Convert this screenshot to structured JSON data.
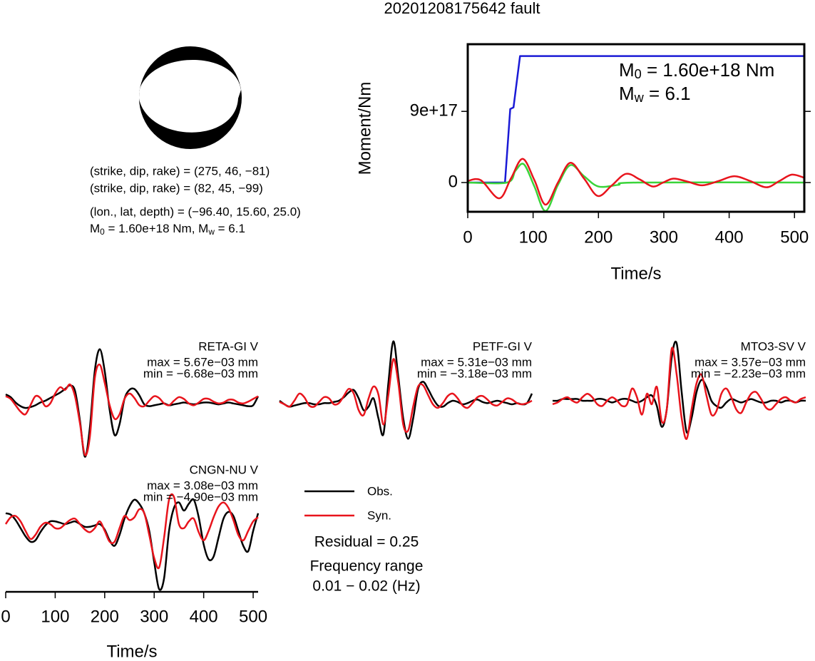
{
  "title": "20201208175642 fault",
  "mechanism": {
    "lines": [
      "(strike, dip, rake) = (275, 46, −81)",
      "(strike, dip, rake) = (82, 45, −99)",
      "(lon., lat, depth) = (−96.40, 15.60, 25.0)"
    ],
    "moment_line": [
      {
        "text": "M"
      },
      {
        "sub": "0"
      },
      {
        "text": " = 1.60e+18 Nm, M"
      },
      {
        "sub": "w"
      },
      {
        "text": " = 6.1"
      }
    ]
  },
  "legend": [
    {
      "name": "Obs.",
      "color": "#000000"
    },
    {
      "name": "Syn.",
      "color": "#e8141c"
    }
  ],
  "residual": "Residual = 0.25",
  "frequency": [
    "Frequency range",
    "0.01 − 0.02 (Hz)"
  ],
  "chart_data": [
    {
      "type": "line",
      "xlabel": "Time/s",
      "ylabel": "Moment/Nm",
      "xlim": [
        0,
        515
      ],
      "ylim": [
        -3.7e+17,
        1.75e+18
      ],
      "xticks": [
        0,
        100,
        200,
        300,
        400,
        500
      ],
      "yticks": [
        0,
        {
          "value": 9e+17,
          "label": "9e+17"
        }
      ],
      "annotations": [
        [
          {
            "text": "M"
          },
          {
            "sub": "0"
          },
          {
            "text": " = 1.60e+18 Nm"
          }
        ],
        [
          {
            "text": "M"
          },
          {
            "sub": "w"
          },
          {
            "text": " = 6.1"
          }
        ]
      ],
      "series": [
        {
          "color": "#1a1ad6",
          "smooth": false,
          "x": [
            0,
            57,
            65,
            70,
            80,
            515
          ],
          "values": [
            0,
            0,
            9.3e+17,
            9.5e+17,
            1.6e+18,
            1.6e+18
          ]
        },
        {
          "color": "#3ad43a",
          "smooth": true,
          "x": [
            0,
            60,
            73,
            86,
            102,
            119,
            138,
            157,
            178,
            200,
            230,
            260,
            515
          ],
          "values": [
            0,
            0,
            1.5e+17,
            2.3e+17,
            -5e+16,
            -3.6e+17,
            -3e+16,
            2.2e+17,
            8e+16,
            -5e+16,
            -3e+16,
            0,
            0
          ]
        },
        {
          "color": "#e8141c",
          "smooth": true,
          "x": [
            0,
            20,
            48,
            66,
            84,
            102,
            119,
            138,
            157,
            178,
            199,
            220,
            242,
            263,
            283,
            299,
            315,
            337,
            359,
            384,
            408,
            432,
            457,
            477,
            496,
            515
          ],
          "values": [
            2e+16,
            3e+16,
            -2e+17,
            5e+16,
            3e+17,
            3e+16,
            -2.8e+17,
            0,
            2.5e+17,
            5e+16,
            -1.7e+17,
            -4e+16,
            1.1e+17,
            4e+16,
            -5e+16,
            0,
            5e+16,
            1e+16,
            -3.5e+16,
            2e+16,
            8e+16,
            2e+16,
            -6e+16,
            2e+16,
            1e+17,
            6e+16
          ]
        }
      ]
    },
    {
      "type": "line",
      "title": "RETA-GI V",
      "max_label": "max = 5.67e−03 mm",
      "min_label": "min = −6.68e−03 mm",
      "xlim": [
        0,
        510
      ],
      "ylim": [
        -0.0075,
        0.0075
      ],
      "x": [
        0,
        10,
        20,
        30,
        40,
        50,
        60,
        70,
        80,
        90,
        100,
        110,
        120,
        130,
        140,
        150,
        160,
        170,
        180,
        190,
        200,
        210,
        220,
        230,
        240,
        250,
        260,
        270,
        280,
        290,
        300,
        310,
        320,
        330,
        340,
        350,
        360,
        370,
        380,
        390,
        400,
        410,
        420,
        430,
        440,
        450,
        460,
        470,
        480,
        490,
        500,
        510
      ],
      "series": [
        {
          "values": [
            0.0007,
            0.0004,
            -0.0002,
            -0.0006,
            -0.0008,
            -0.0007,
            -0.0005,
            -0.0002,
            0,
            0.0003,
            0.0006,
            0.0009,
            0.0013,
            0.0017,
            0.0011,
            -0.0022,
            -0.0062,
            -0.003,
            0.0033,
            0.0057,
            0.0033,
            -0.001,
            -0.0038,
            -0.0026,
            0.0002,
            0.0012,
            0.0013,
            0.0006,
            -0.0004,
            -0.0006,
            -0.0005,
            -0.0004,
            -0.0003,
            -0.0005,
            -0.0004,
            -0.0003,
            -0.0002,
            -0.0003,
            -0.0004,
            -0.0003,
            -0.0002,
            -0.0002,
            -0.0003,
            -0.0004,
            -0.0003,
            -0.0002,
            -0.0003,
            -0.0004,
            -0.0005,
            -0.0006,
            -0.0005,
            0.0005
          ]
        },
        {
          "values": [
            0.0005,
            0.0002,
            -0.0005,
            -0.0012,
            -0.0015,
            -0.0005,
            0.0005,
            0.0003,
            -0.0006,
            -0.0003,
            0.0008,
            0.0015,
            0.0012,
            0.0018,
            0.0005,
            -0.0025,
            -0.006,
            -0.004,
            0.0025,
            0.004,
            0.002,
            -0.0005,
            -0.002,
            -0.0015,
            0.0002,
            0.0008,
            0.0003,
            -0.0005,
            -0.0006,
            0,
            0.0005,
            0.0003,
            -0.0003,
            -0.0005,
            0,
            0.0004,
            0.0002,
            -0.0003,
            -0.0005,
            -0.0002,
            0.0002,
            0.0002,
            -0.0001,
            -0.0003,
            -0.0002,
            0.0001,
            0.0001,
            -0.0002,
            -0.0003,
            -0.0001,
            0.0002,
            0.0005
          ]
        }
      ]
    },
    {
      "type": "line",
      "title": "PETF-GI V",
      "max_label": "max = 5.31e−03 mm",
      "min_label": "min = −3.18e−03 mm",
      "xlim": [
        0,
        510
      ],
      "ylim": [
        -0.0057,
        0.0057
      ],
      "x": [
        0,
        10,
        20,
        30,
        40,
        50,
        60,
        70,
        80,
        90,
        100,
        110,
        120,
        130,
        140,
        150,
        160,
        170,
        180,
        190,
        200,
        210,
        220,
        230,
        240,
        250,
        260,
        270,
        280,
        290,
        300,
        310,
        320,
        330,
        340,
        350,
        360,
        370,
        380,
        390,
        400,
        410,
        420,
        430,
        440,
        450,
        460,
        470,
        480,
        490,
        500,
        510
      ],
      "series": [
        {
          "values": [
            0,
            -0.0003,
            -0.0005,
            -0.0004,
            -0.0003,
            -0.0002,
            -0.0002,
            -0.0003,
            -0.0003,
            -0.0002,
            -0.0002,
            -0.0001,
            0,
            0.0003,
            0.0007,
            0.0009,
            0.0002,
            -0.0008,
            -0.0005,
            0.0002,
            -0.0015,
            -0.0028,
            0.0015,
            0.005,
            0.002,
            -0.0015,
            -0.0032,
            -0.0015,
            0.001,
            0.0016,
            0.001,
            0.0002,
            -0.0004,
            -0.0005,
            -0.0002,
            0,
            -0.0001,
            -0.0003,
            -0.0002,
            0,
            0.0001,
            -0.0001,
            -0.0002,
            -0.0001,
            0,
            -0.0001,
            -0.0002,
            -0.0003,
            -0.0002,
            -0.0003,
            -0.0002,
            0.0006
          ]
        },
        {
          "values": [
            -0.0001,
            -0.0003,
            -0.0005,
            0,
            0.0006,
            0.0003,
            -0.0004,
            -0.0005,
            -0.0001,
            0.0003,
            0.0002,
            -0.0003,
            -0.0002,
            0.0004,
            0.001,
            0.0006,
            -0.0008,
            -0.0012,
            0.0002,
            0.0012,
            0.0005,
            -0.002,
            0.0005,
            0.0035,
            0.0015,
            -0.002,
            -0.0025,
            -0.0005,
            0.0012,
            0.0013,
            0.0005,
            -0.0003,
            -0.0006,
            -0.0002,
            0.0004,
            0.0006,
            0.0002,
            -0.0004,
            -0.0006,
            -0.0002,
            0.0003,
            0.0004,
            0.0001,
            -0.0003,
            -0.0004,
            -0.0001,
            0.0002,
            0.0001,
            -0.0002,
            -0.0003,
            -0.0002,
            0
          ]
        }
      ]
    },
    {
      "type": "line",
      "title": "MTO3-SV V",
      "max_label": "max = 3.57e−03 mm",
      "min_label": "min = −2.23e−03 mm",
      "xlim": [
        0,
        510
      ],
      "ylim": [
        -0.0039,
        0.0039
      ],
      "x": [
        0,
        10,
        20,
        30,
        40,
        50,
        60,
        70,
        80,
        90,
        100,
        110,
        120,
        130,
        140,
        150,
        160,
        170,
        180,
        190,
        200,
        210,
        220,
        230,
        240,
        250,
        260,
        270,
        280,
        290,
        300,
        310,
        320,
        330,
        340,
        350,
        360,
        370,
        380,
        390,
        400,
        410,
        420,
        430,
        440,
        450,
        460,
        470,
        480,
        490,
        500,
        510
      ],
      "series": [
        {
          "values": [
            0,
            0,
            0.0001,
            0.0001,
            0.0001,
            0.0001,
            0,
            0,
            0,
            0.0001,
            0.0001,
            0,
            -0.0001,
            0,
            0.0001,
            0.0001,
            0,
            -0.0001,
            0,
            0.0002,
            0.0003,
            -0.0003,
            -0.0015,
            -0.0005,
            0.0025,
            0.0033,
            0.0005,
            -0.0018,
            -0.001,
            0.0005,
            0.0012,
            0.0008,
            0,
            -0.0003,
            -0.0004,
            -0.0001,
            0.0001,
            0,
            -0.0001,
            0,
            0.0001,
            0,
            -0.0001,
            -0.0001,
            0,
            0,
            -0.0001,
            0,
            0,
            -0.0001,
            0,
            0
          ]
        },
        {
          "values": [
            -0.0002,
            -0.0001,
            0.0001,
            0.0002,
            0,
            -0.0001,
            0.0002,
            0.0004,
            0.0002,
            -0.0002,
            -0.0003,
            0,
            0.0002,
            0,
            -0.0003,
            -0.0002,
            0.0007,
            0.0002,
            -0.0008,
            0.0004,
            -0.0002,
            0.0008,
            -0.0012,
            -0.0005,
            0.003,
            0.0015,
            -0.001,
            -0.0022,
            -0.0005,
            0.001,
            0.0015,
            0.0003,
            -0.0008,
            -0.0006,
            0.0004,
            0.0007,
            0.0002,
            -0.0005,
            -0.0007,
            -0.0001,
            0.0004,
            0.0005,
            0.0001,
            -0.0004,
            -0.0005,
            -0.0002,
            0.0001,
            0.0002,
            0,
            -0.0001,
            0.0001,
            0.0002
          ]
        }
      ]
    },
    {
      "type": "line",
      "title": "CNGN-NU V",
      "max_label": "max = 3.08e−03 mm",
      "min_label": "min = −4.90e−03 mm",
      "xlabel": "Time/s",
      "xlim": [
        0,
        510
      ],
      "ylim": [
        -0.005,
        0.005
      ],
      "xticks": [
        0,
        100,
        200,
        300,
        400,
        500
      ],
      "x": [
        0,
        10,
        20,
        30,
        40,
        50,
        60,
        70,
        80,
        90,
        100,
        110,
        120,
        130,
        140,
        150,
        160,
        170,
        180,
        190,
        200,
        210,
        220,
        230,
        240,
        250,
        260,
        270,
        280,
        290,
        300,
        310,
        320,
        330,
        340,
        350,
        360,
        370,
        380,
        390,
        400,
        410,
        420,
        430,
        440,
        450,
        460,
        470,
        480,
        490,
        500,
        510
      ],
      "series": [
        {
          "values": [
            0.0008,
            0.0007,
            0.0003,
            -0.0003,
            -0.0009,
            -0.0013,
            -0.0012,
            -0.0006,
            -0.0001,
            0.0002,
            0.0002,
            0.0001,
            0,
            0.0001,
            0.0002,
            0,
            -0.0002,
            -0.0002,
            -0.0001,
            0,
            -0.0004,
            -0.0012,
            -0.0016,
            -0.0008,
            0.0004,
            0.0013,
            0.0018,
            0.0015,
            0.0008,
            -0.0005,
            -0.0028,
            -0.0048,
            -0.004,
            -0.0005,
            0.0012,
            0.0016,
            0.001,
            0.0015,
            0.0018,
            0.0005,
            -0.0015,
            -0.0026,
            -0.0024,
            -0.001,
            0.0004,
            0.0009,
            0.0006,
            -0.0005,
            -0.0016,
            -0.002,
            -0.0005,
            0.0008
          ]
        },
        {
          "values": [
            0,
            0.0005,
            0.0006,
            0.0002,
            -0.0005,
            -0.0011,
            -0.0008,
            -0.0002,
            0.0001,
            0,
            -0.0003,
            -0.0003,
            0,
            0.0003,
            0.0004,
            0,
            -0.0004,
            -0.0006,
            -0.0003,
            0.0002,
            -0.0005,
            -0.0013,
            -0.0013,
            -0.0003,
            0.0006,
            0.0003,
            0.0005,
            0.0011,
            0.0008,
            -0.0008,
            -0.0025,
            -0.0032,
            -0.001,
            0.0018,
            0.002,
            0,
            -0.0003,
            0.0002,
            0.0004,
            -0.0006,
            -0.0012,
            -0.0005,
            0.0005,
            0.0013,
            0.0016,
            0.0012,
            0.0003,
            -0.0008,
            -0.0012,
            -0.0005,
            0.0002,
            0.0005
          ]
        }
      ]
    }
  ]
}
